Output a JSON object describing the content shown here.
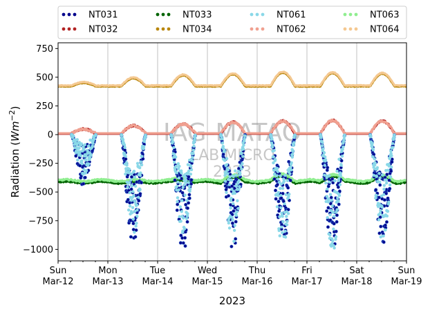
{
  "chart_data": {
    "type": "scatter",
    "title": "",
    "xlabel": "2023",
    "ylabel_prefix": "Radiation (",
    "ylabel_unit_base": "Wm",
    "ylabel_unit_exp": "−2",
    "ylabel_suffix": ")",
    "ylim": [
      -1100,
      800
    ],
    "yticks": [
      {
        "value": 750,
        "label": "750"
      },
      {
        "value": 500,
        "label": "500"
      },
      {
        "value": 250,
        "label": "250"
      },
      {
        "value": 0,
        "label": "0"
      },
      {
        "value": -250,
        "label": "−250"
      },
      {
        "value": -500,
        "label": "−500"
      },
      {
        "value": -750,
        "label": "−750"
      },
      {
        "value": -1000,
        "label": "−1000"
      }
    ],
    "xlim_days": [
      0,
      7
    ],
    "xticks": [
      {
        "day": 0,
        "label1": "Sun",
        "label2": "Mar-12"
      },
      {
        "day": 1,
        "label1": "Mon",
        "label2": "Mar-13"
      },
      {
        "day": 2,
        "label1": "Tue",
        "label2": "Mar-14"
      },
      {
        "day": 3,
        "label1": "Wed",
        "label2": "Mar-15"
      },
      {
        "day": 4,
        "label1": "Thu",
        "label2": "Mar-16"
      },
      {
        "day": 5,
        "label1": "Fri",
        "label2": "Mar-17"
      },
      {
        "day": 6,
        "label1": "Sat",
        "label2": "Mar-18"
      },
      {
        "day": 7,
        "label1": "Sun",
        "label2": "Mar-19"
      }
    ],
    "grid": "vertical",
    "legend_position": "top",
    "watermark": [
      "IAG-MATAO",
      "LAB MICRO",
      "2023"
    ],
    "series": [
      {
        "name": "NT031",
        "color": "#00008b",
        "group": "sw_down",
        "night": 0,
        "amplitudes": [
          -450,
          -1000,
          -1050,
          -1000,
          -1030,
          -1040,
          -1000
        ]
      },
      {
        "name": "NT061",
        "color": "#8ad8e8",
        "group": "sw_down",
        "night": 0,
        "amplitudes": [
          -360,
          -860,
          -900,
          -950,
          -1000,
          -1030,
          -980
        ]
      },
      {
        "name": "NT032",
        "color": "#b22222",
        "group": "sw_up",
        "night": 8,
        "amplitudes": [
          40,
          70,
          85,
          100,
          110,
          115,
          110
        ]
      },
      {
        "name": "NT062",
        "color": "#f0a090",
        "group": "sw_up",
        "night": 12,
        "amplitudes": [
          35,
          65,
          80,
          95,
          105,
          110,
          105
        ]
      },
      {
        "name": "NT033",
        "color": "#006400",
        "group": "lw_down",
        "night": -415,
        "amplitudes": [
          0,
          0,
          20,
          40,
          50,
          55,
          40
        ]
      },
      {
        "name": "NT063",
        "color": "#90ee90",
        "group": "lw_down",
        "night": -400,
        "amplitudes": [
          0,
          0,
          25,
          45,
          55,
          55,
          40
        ]
      },
      {
        "name": "NT034",
        "color": "#b8860b",
        "group": "lw_up",
        "night": 420,
        "amplitudes": [
          30,
          70,
          95,
          105,
          120,
          115,
          110
        ]
      },
      {
        "name": "NT064",
        "color": "#f4c890",
        "group": "lw_up",
        "night": 428,
        "amplitudes": [
          30,
          70,
          95,
          105,
          120,
          115,
          110
        ]
      }
    ],
    "legend_order": [
      "NT031",
      "NT033",
      "NT061",
      "NT063",
      "NT032",
      "NT034",
      "NT062",
      "NT064"
    ]
  }
}
